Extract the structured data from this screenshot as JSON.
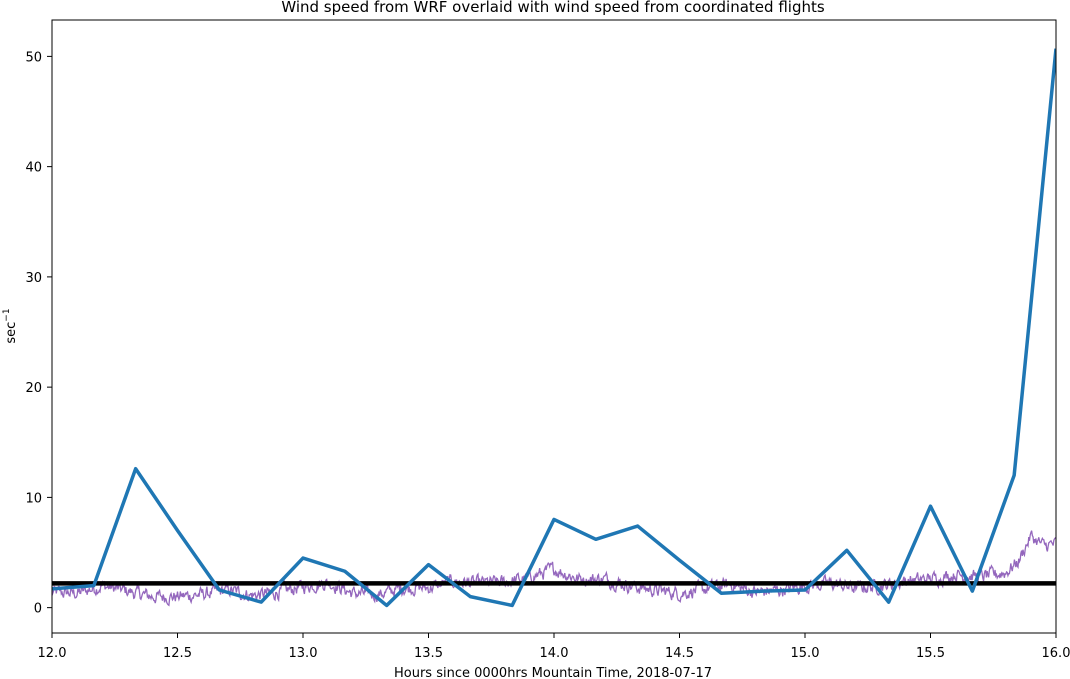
{
  "chart_data": {
    "type": "line",
    "title": "Wind speed from WRF overlaid with wind speed from coordinated flights",
    "xlabel": "Hours since 0000hrs Mountain Time, 2018-07-17",
    "ylabel": "sec",
    "ylabel_superscript": "−1",
    "xlim": [
      12.0,
      16.0
    ],
    "ylim": [
      -2.3,
      53.3
    ],
    "x_ticks": [
      12.0,
      12.5,
      13.0,
      13.5,
      14.0,
      14.5,
      15.0,
      15.5,
      16.0
    ],
    "x_tick_labels": [
      "12.0",
      "12.5",
      "13.0",
      "13.5",
      "14.0",
      "14.5",
      "15.0",
      "15.5",
      "16.0"
    ],
    "y_ticks": [
      0,
      10,
      20,
      30,
      40,
      50
    ],
    "y_tick_labels": [
      "0",
      "10",
      "20",
      "30",
      "40",
      "50"
    ],
    "grid": false,
    "legend": false,
    "series": [
      {
        "style": "thick-line",
        "color": "#1f77b4",
        "x": [
          12.0,
          12.1667,
          12.3333,
          12.5,
          12.6667,
          12.8333,
          13.0,
          13.1667,
          13.3333,
          13.5,
          13.6667,
          13.8333,
          14.0,
          14.1667,
          14.3333,
          14.5,
          14.6667,
          14.8333,
          15.0,
          15.1667,
          15.3333,
          15.5,
          15.6667,
          15.8333,
          16.0
        ],
        "y": [
          1.7,
          2.0,
          12.6,
          7.0,
          1.6,
          0.5,
          4.5,
          3.3,
          0.2,
          3.9,
          1.0,
          0.2,
          8.0,
          6.2,
          7.4,
          4.3,
          1.3,
          1.5,
          1.6,
          5.2,
          0.5,
          9.2,
          1.5,
          12.0,
          50.7
        ]
      },
      {
        "style": "thin-noisy-line",
        "color": "#9467bd",
        "x": [
          12.0,
          12.1,
          12.2,
          12.3,
          12.4,
          12.5,
          12.6,
          12.7,
          12.8,
          12.9,
          13.0,
          13.1,
          13.2,
          13.3,
          13.4,
          13.5,
          13.6,
          13.7,
          13.8,
          13.9,
          14.0,
          14.1,
          14.2,
          14.3,
          14.4,
          14.5,
          14.6,
          14.7,
          14.8,
          14.9,
          15.0,
          15.1,
          15.2,
          15.3,
          15.4,
          15.5,
          15.6,
          15.7,
          15.8,
          15.85,
          15.9,
          15.95,
          16.0
        ],
        "y": [
          1.4,
          1.3,
          2.0,
          1.5,
          1.0,
          1.0,
          1.2,
          1.6,
          1.1,
          1.4,
          1.9,
          2.3,
          1.3,
          1.2,
          1.8,
          1.8,
          2.4,
          2.2,
          2.3,
          2.7,
          3.5,
          2.6,
          2.6,
          2.0,
          1.6,
          1.3,
          1.7,
          2.1,
          1.4,
          1.6,
          2.0,
          2.2,
          1.8,
          2.0,
          2.4,
          2.6,
          3.0,
          2.8,
          3.2,
          4.2,
          6.5,
          5.6,
          5.8
        ],
        "amplitude": 0.7
      },
      {
        "style": "horizontal-reference",
        "color": "#000000",
        "x": [
          12.0,
          16.0
        ],
        "y": [
          2.2,
          2.2
        ]
      }
    ]
  }
}
